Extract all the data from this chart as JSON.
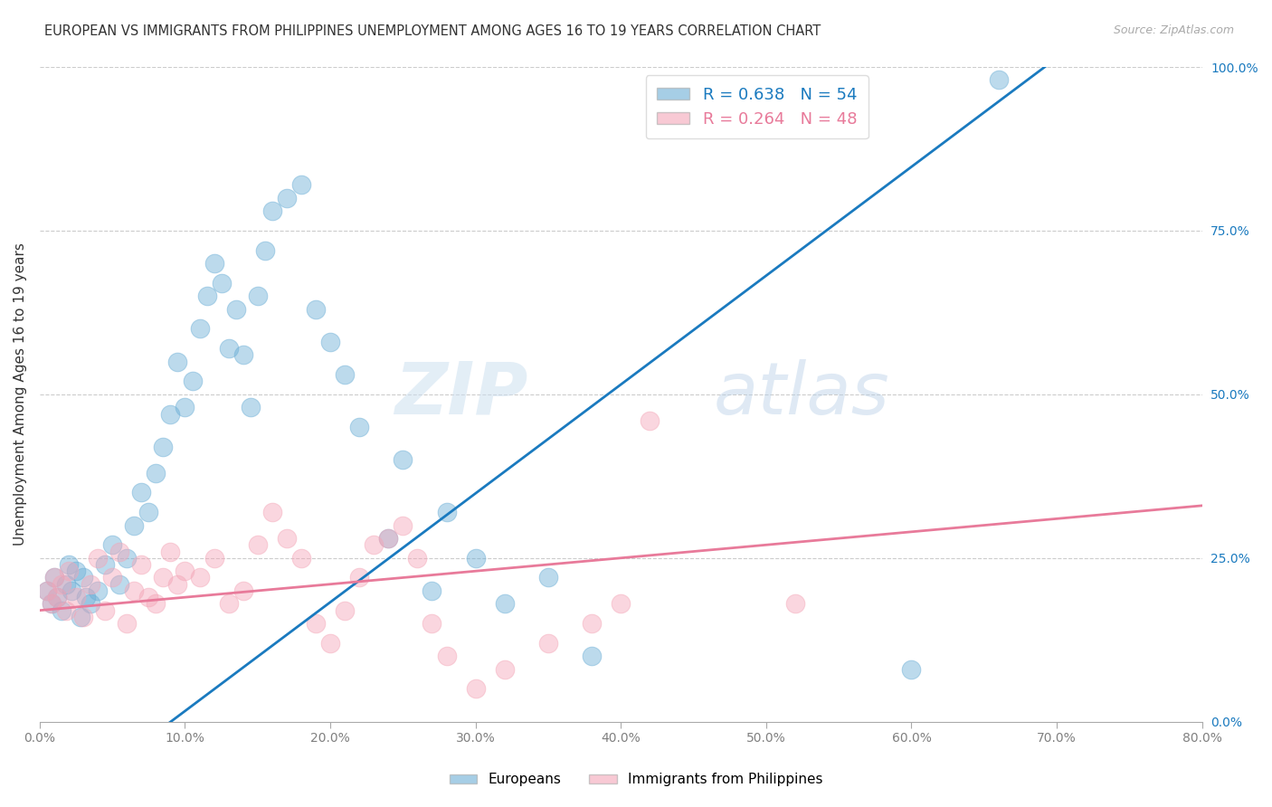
{
  "title": "EUROPEAN VS IMMIGRANTS FROM PHILIPPINES UNEMPLOYMENT AMONG AGES 16 TO 19 YEARS CORRELATION CHART",
  "source": "Source: ZipAtlas.com",
  "ylabel": "Unemployment Among Ages 16 to 19 years",
  "xlabel_ticks": [
    "0.0%",
    "10.0%",
    "20.0%",
    "30.0%",
    "40.0%",
    "50.0%",
    "60.0%",
    "70.0%",
    "80.0%"
  ],
  "xlabel_vals": [
    0,
    10,
    20,
    30,
    40,
    50,
    60,
    70,
    80
  ],
  "ylabel_right_ticks": [
    "0.0%",
    "25.0%",
    "50.0%",
    "75.0%",
    "100.0%"
  ],
  "ylabel_right_vals": [
    0,
    25,
    50,
    75,
    100
  ],
  "blue_R": 0.638,
  "blue_N": 54,
  "pink_R": 0.264,
  "pink_N": 48,
  "blue_color": "#6baed6",
  "pink_color": "#f4a6b8",
  "blue_line_color": "#1a7abf",
  "pink_line_color": "#e87a9a",
  "watermark": "ZIPatlas",
  "xlim": [
    0,
    80
  ],
  "ylim": [
    0,
    100
  ],
  "blue_scatter_x": [
    0.5,
    0.8,
    1.0,
    1.2,
    1.5,
    1.8,
    2.0,
    2.2,
    2.5,
    2.8,
    3.0,
    3.2,
    3.5,
    4.0,
    4.5,
    5.0,
    5.5,
    6.0,
    6.5,
    7.0,
    7.5,
    8.0,
    8.5,
    9.0,
    9.5,
    10.0,
    10.5,
    11.0,
    11.5,
    12.0,
    12.5,
    13.0,
    13.5,
    14.0,
    14.5,
    15.0,
    15.5,
    16.0,
    17.0,
    18.0,
    19.0,
    20.0,
    21.0,
    22.0,
    24.0,
    25.0,
    27.0,
    28.0,
    30.0,
    32.0,
    35.0,
    38.0,
    60.0,
    66.0
  ],
  "blue_scatter_y": [
    20,
    18,
    22,
    19,
    17,
    21,
    24,
    20,
    23,
    16,
    22,
    19,
    18,
    20,
    24,
    27,
    21,
    25,
    30,
    35,
    32,
    38,
    42,
    47,
    55,
    48,
    52,
    60,
    65,
    70,
    67,
    57,
    63,
    56,
    48,
    65,
    72,
    78,
    80,
    82,
    63,
    58,
    53,
    45,
    28,
    40,
    20,
    32,
    25,
    18,
    22,
    10,
    8,
    98
  ],
  "pink_scatter_x": [
    0.5,
    0.8,
    1.0,
    1.2,
    1.5,
    1.8,
    2.0,
    2.5,
    3.0,
    3.5,
    4.0,
    4.5,
    5.0,
    5.5,
    6.0,
    6.5,
    7.0,
    7.5,
    8.0,
    8.5,
    9.0,
    9.5,
    10.0,
    11.0,
    12.0,
    13.0,
    14.0,
    15.0,
    16.0,
    17.0,
    18.0,
    19.0,
    20.0,
    21.0,
    22.0,
    23.0,
    24.0,
    25.0,
    26.0,
    27.0,
    28.0,
    30.0,
    32.0,
    35.0,
    38.0,
    40.0,
    42.0,
    52.0
  ],
  "pink_scatter_y": [
    20,
    18,
    22,
    19,
    21,
    17,
    23,
    19,
    16,
    21,
    25,
    17,
    22,
    26,
    15,
    20,
    24,
    19,
    18,
    22,
    26,
    21,
    23,
    22,
    25,
    18,
    20,
    27,
    32,
    28,
    25,
    15,
    12,
    17,
    22,
    27,
    28,
    30,
    25,
    15,
    10,
    5,
    8,
    12,
    15,
    18,
    46,
    18
  ],
  "blue_line_x": [
    0,
    80
  ],
  "blue_line_y": [
    -15,
    118
  ],
  "pink_line_x": [
    0,
    80
  ],
  "pink_line_y": [
    17,
    33
  ]
}
